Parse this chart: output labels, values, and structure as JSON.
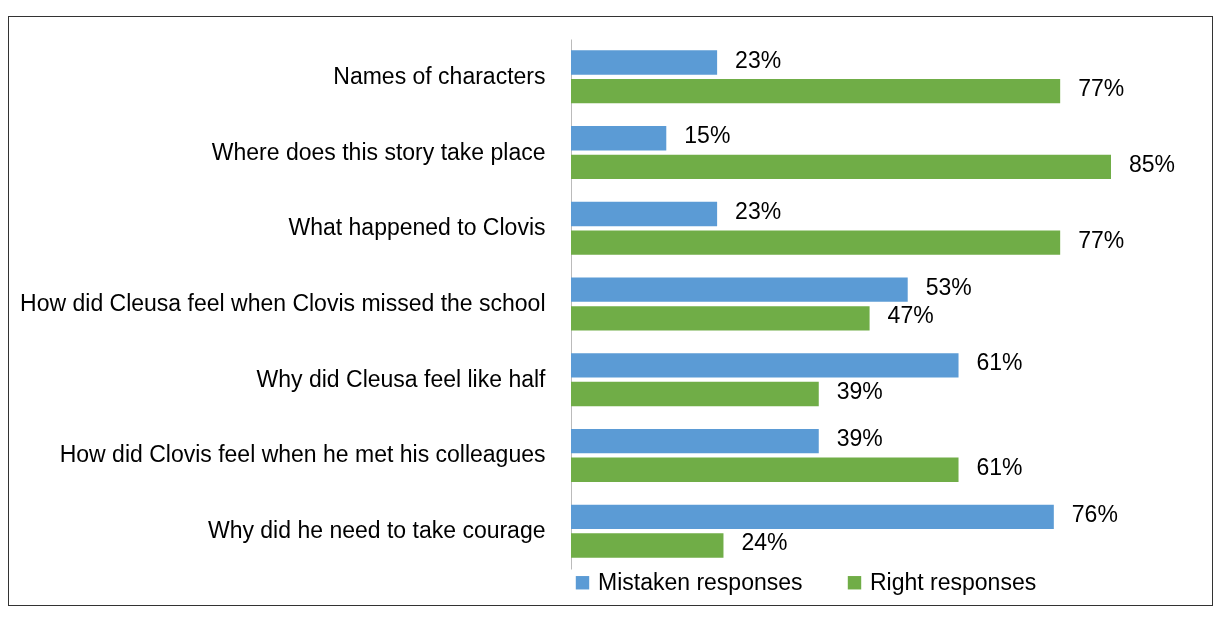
{
  "chart_data": {
    "type": "bar",
    "orientation": "horizontal",
    "legend": "bottom",
    "categories": [
      "Names of characters",
      "Where does this story take place",
      "What happened to Clovis",
      "How did Cleusa feel when Clovis missed the school",
      "Why did Cleusa feel like half",
      "How did Clovis feel when he met his colleagues",
      "Why did he need to take courage"
    ],
    "series": [
      {
        "name": "Mistaken responses",
        "color": "#5b9bd5",
        "values": [
          23,
          15,
          23,
          53,
          61,
          39,
          76
        ],
        "value_labels": [
          "23%",
          "15%",
          "23%",
          "53%",
          "61%",
          "39%",
          "76%"
        ]
      },
      {
        "name": "Right responses",
        "color": "#70ad47",
        "values": [
          77,
          85,
          77,
          47,
          39,
          61,
          24
        ],
        "value_labels": [
          "77%",
          "85%",
          "77%",
          "47%",
          "39%",
          "61%",
          "24%"
        ]
      }
    ]
  }
}
